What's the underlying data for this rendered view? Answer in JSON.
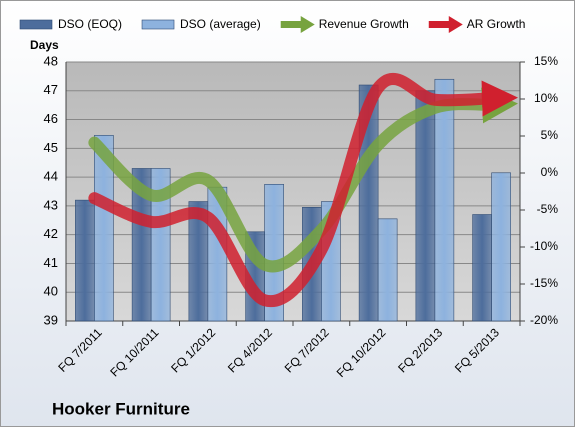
{
  "chart_data": {
    "type": "bar",
    "title": "Hooker Furniture",
    "y_label": "Days",
    "categories": [
      "FQ 7/2011",
      "FQ 10/2011",
      "FQ 1/2012",
      "FQ 4/2012",
      "FQ 7/2012",
      "FQ 10/2012",
      "FQ 2/2013",
      "FQ 5/2013"
    ],
    "series": [
      {
        "name": "DSO (EOQ)",
        "type": "bar",
        "color": "#4d6d9c",
        "values": [
          43.2,
          44.3,
          43.15,
          42.1,
          42.95,
          47.2,
          47.0,
          42.7
        ]
      },
      {
        "name": "DSO (average)",
        "type": "bar",
        "color": "#8db2de",
        "values": [
          45.45,
          44.3,
          43.65,
          43.75,
          43.15,
          42.55,
          47.4,
          44.15
        ]
      },
      {
        "name": "Revenue Growth",
        "type": "line",
        "axis": "y2",
        "color": "#77a33f",
        "values": [
          4.1,
          -3,
          -1,
          -12.4,
          -7.7,
          3.8,
          8.8,
          9.2
        ]
      },
      {
        "name": "AR Growth",
        "type": "line",
        "axis": "y2",
        "color": "#d0202e",
        "values": [
          -3.4,
          -6.6,
          -6,
          -17.2,
          -10.4,
          11.5,
          9.9,
          10.1
        ]
      }
    ],
    "ylim": [
      39,
      48
    ],
    "yticks": [
      39,
      40,
      41,
      42,
      43,
      44,
      45,
      46,
      47,
      48
    ],
    "y2lim": [
      -20,
      15
    ],
    "y2ticks": [
      {
        "value": -20,
        "label": "-20%"
      },
      {
        "value": -15,
        "label": "-15%"
      },
      {
        "value": -10,
        "label": "-10%"
      },
      {
        "value": -5,
        "label": "-5%"
      },
      {
        "value": 0,
        "label": "0%"
      },
      {
        "value": 5,
        "label": "5%"
      },
      {
        "value": 10,
        "label": "10%"
      },
      {
        "value": 15,
        "label": "15%"
      }
    ],
    "grid": true,
    "legend": "top"
  }
}
